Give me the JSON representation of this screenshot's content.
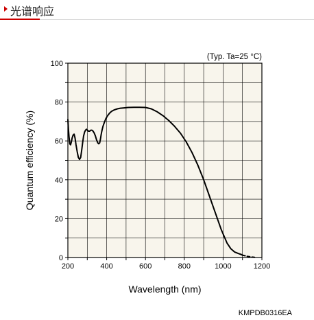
{
  "header": {
    "title": "光谱响应"
  },
  "chart_data": {
    "type": "line",
    "title": "",
    "note": "(Typ. Ta=25 °C)",
    "xlabel": "Wavelength (nm)",
    "ylabel": "Quantum efficiency (%)",
    "xlim": [
      200,
      1200
    ],
    "ylim": [
      0,
      100
    ],
    "xticks": [
      200,
      400,
      600,
      800,
      1000,
      1200
    ],
    "yticks": [
      0,
      20,
      40,
      60,
      80,
      100
    ],
    "grid": true,
    "background": "#f8f5ec",
    "series": [
      {
        "style": "solid",
        "color": "#000000",
        "x": [
          200,
          203,
          206,
          210,
          214,
          218,
          222,
          227,
          232,
          237,
          242,
          248,
          254,
          260,
          266,
          271,
          276,
          281,
          286,
          291,
          296,
          301,
          306,
          312,
          318,
          324,
          330,
          336,
          342,
          348,
          354,
          359,
          364,
          368,
          372,
          376,
          381,
          388,
          396,
          405,
          415,
          425,
          440,
          455,
          470,
          490,
          510,
          540,
          570,
          600,
          630,
          660,
          690,
          720,
          750,
          780,
          810,
          840,
          870,
          900,
          930,
          960,
          990,
          1020,
          1040,
          1060,
          1080,
          1095,
          1100
        ],
        "y": [
          71,
          66,
          62,
          58.5,
          58,
          59.5,
          61.5,
          63,
          63.5,
          61.5,
          58,
          54.5,
          51.5,
          50.5,
          51.5,
          55,
          59,
          62.5,
          64.5,
          65.5,
          66,
          65.5,
          65,
          65,
          65.5,
          65.5,
          65,
          64,
          62.5,
          60.5,
          59,
          58.5,
          59,
          61,
          63.5,
          65.5,
          67.5,
          69.5,
          71.5,
          73,
          74.3,
          75.2,
          76,
          76.5,
          76.8,
          77,
          77.2,
          77.3,
          77.3,
          77.2,
          76.5,
          75,
          73,
          70.5,
          67.5,
          64,
          59.5,
          54,
          47.5,
          40,
          31.5,
          23,
          14.5,
          7.5,
          4.5,
          2.8,
          2,
          1.5,
          1.2
        ]
      },
      {
        "style": "dashed",
        "color": "#000000",
        "x": [
          1100,
          1125,
          1150,
          1170
        ],
        "y": [
          1.2,
          0.6,
          0.2,
          0
        ]
      }
    ]
  },
  "doc_code": "KMPDB0316EA"
}
